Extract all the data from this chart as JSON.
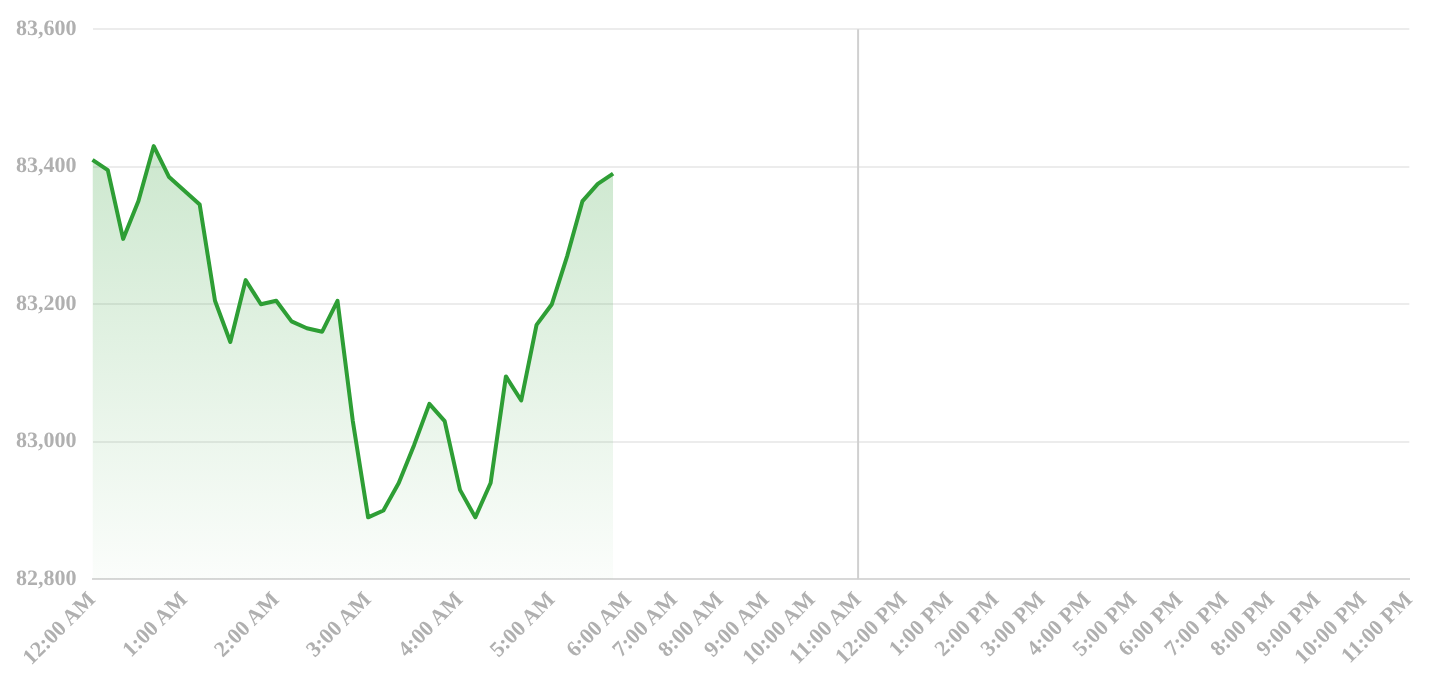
{
  "chart_data": {
    "type": "area",
    "categories": [
      "12:00 AM",
      null,
      null,
      null,
      null,
      null,
      "1:00 AM",
      null,
      null,
      null,
      null,
      null,
      "2:00 AM",
      null,
      null,
      null,
      null,
      null,
      "3:00 AM",
      null,
      null,
      null,
      null,
      null,
      "4:00 AM",
      null,
      null,
      null,
      null,
      null,
      "5:00 AM",
      null,
      null,
      null,
      null,
      "6:00 AM",
      null,
      null,
      "7:00 AM",
      null,
      null,
      "8:00 AM",
      null,
      null,
      "9:00 AM",
      null,
      null,
      "10:00 AM",
      null,
      null,
      "11:00 AM",
      null,
      null,
      "12:00 PM",
      null,
      null,
      "1:00 PM",
      null,
      null,
      "2:00 PM",
      null,
      null,
      "3:00 PM",
      null,
      null,
      "4:00 PM",
      null,
      null,
      "5:00 PM",
      null,
      null,
      "6:00 PM",
      null,
      null,
      "7:00 PM",
      null,
      null,
      "8:00 PM",
      null,
      null,
      "9:00 PM",
      null,
      null,
      "10:00 PM",
      null,
      null,
      "11:00 PM"
    ],
    "series": [
      {
        "color": "#2e9e35",
        "values": [
          83410,
          83395,
          83295,
          83350,
          83430,
          83385,
          83365,
          83345,
          83205,
          83145,
          83235,
          83200,
          83205,
          83175,
          83165,
          83160,
          83205,
          83030,
          82890,
          82900,
          82940,
          82995,
          83055,
          83030,
          82930,
          82890,
          82940,
          83095,
          83060,
          83170,
          83200,
          83270,
          83350,
          83375,
          83390,
          null,
          null,
          null,
          null,
          null,
          null,
          null,
          null,
          null,
          null,
          null,
          null,
          null,
          null,
          null,
          null,
          null,
          null,
          null,
          null,
          null,
          null,
          null,
          null,
          null,
          null,
          null,
          null,
          null,
          null,
          null,
          null,
          null,
          null,
          null,
          null,
          null,
          null,
          null,
          null,
          null,
          null,
          null,
          null,
          null,
          null,
          null,
          null,
          null,
          null,
          null,
          null
        ]
      }
    ],
    "ylim": [
      82800,
      83600
    ],
    "yticks": [
      {
        "value": 82800,
        "label": "82,800"
      },
      {
        "value": 83000,
        "label": "83,000"
      },
      {
        "value": 83200,
        "label": "83,200"
      },
      {
        "value": 83400,
        "label": "83,400"
      },
      {
        "value": 83600,
        "label": "83,600"
      }
    ],
    "grid": "y",
    "legend": false,
    "marker": "none",
    "line_style": "solid",
    "ref_lines": [
      {
        "axis": "x",
        "value": "11:00 AM",
        "color": "#d0d0d0"
      }
    ]
  }
}
